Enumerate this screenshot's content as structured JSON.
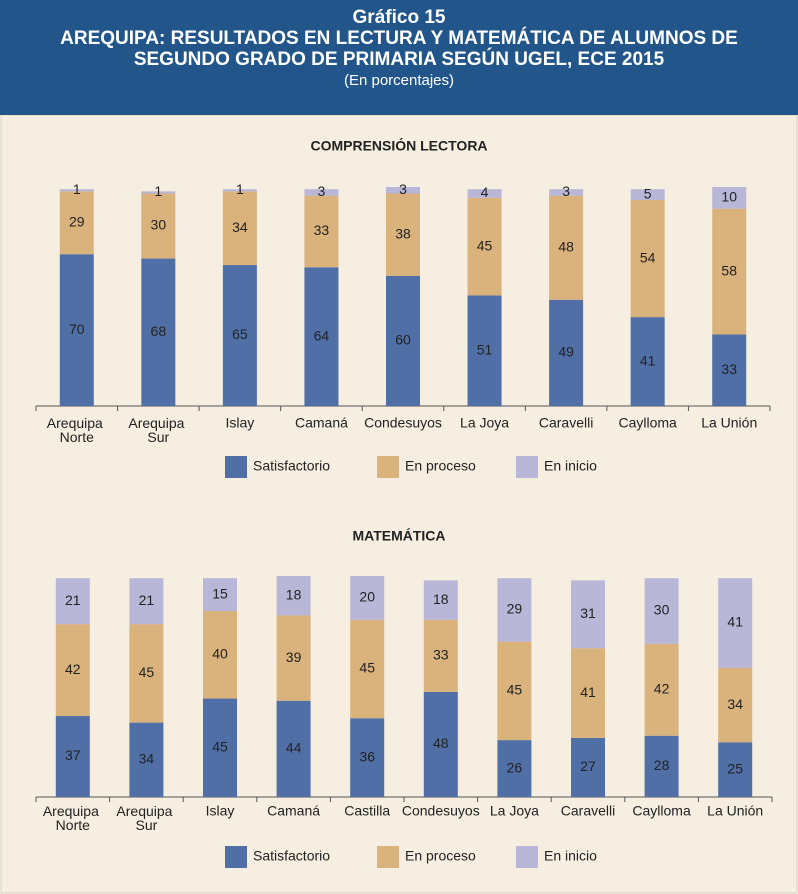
{
  "header": {
    "number": "Gráfico 15",
    "title_lines": [
      "AREQUIPA: RESULTADOS EN LECTURA Y MATEMÁTICA DE ALUMNOS DE",
      "SEGUNDO GRADO DE PRIMARIA SEGÚN UGEL, ECE 2015"
    ],
    "subtitle": "(En porcentajes)"
  },
  "chart_data": [
    {
      "type": "stacked_bar",
      "title": "COMPRENSIÓN LECTORA",
      "categories": [
        "Arequipa Norte",
        "Arequipa Sur",
        "Islay",
        "Camaná",
        "Condesuyos",
        "La Joya",
        "Caravelli",
        "Caylloma",
        "La Unión"
      ],
      "series": [
        {
          "name": "Satisfactorio",
          "color": "#4f6fa6",
          "values": [
            70,
            68,
            65,
            64,
            60,
            51,
            49,
            41,
            33
          ]
        },
        {
          "name": "En proceso",
          "color": "#d9b27c",
          "values": [
            29,
            30,
            34,
            33,
            38,
            45,
            48,
            54,
            58
          ]
        },
        {
          "name": "En inicio",
          "color": "#b9b7d8",
          "values": [
            1,
            1,
            1,
            3,
            3,
            4,
            3,
            5,
            10
          ]
        }
      ]
    },
    {
      "type": "stacked_bar",
      "title": "MATEMÁTICA",
      "categories": [
        "Arequipa Norte",
        "Arequipa Sur",
        "Islay",
        "Camaná",
        "Castilla",
        "Condesuyos",
        "La Joya",
        "Caravelli",
        "Caylloma",
        "La Unión"
      ],
      "series": [
        {
          "name": "Satisfactorio",
          "color": "#4f6fa6",
          "values": [
            37,
            34,
            45,
            44,
            36,
            48,
            26,
            27,
            28,
            25
          ]
        },
        {
          "name": "En proceso",
          "color": "#d9b27c",
          "values": [
            42,
            45,
            40,
            39,
            45,
            33,
            45,
            41,
            42,
            34
          ]
        },
        {
          "name": "En inicio",
          "color": "#b9b7d8",
          "values": [
            21,
            21,
            15,
            18,
            20,
            18,
            29,
            31,
            30,
            41
          ]
        }
      ]
    }
  ]
}
